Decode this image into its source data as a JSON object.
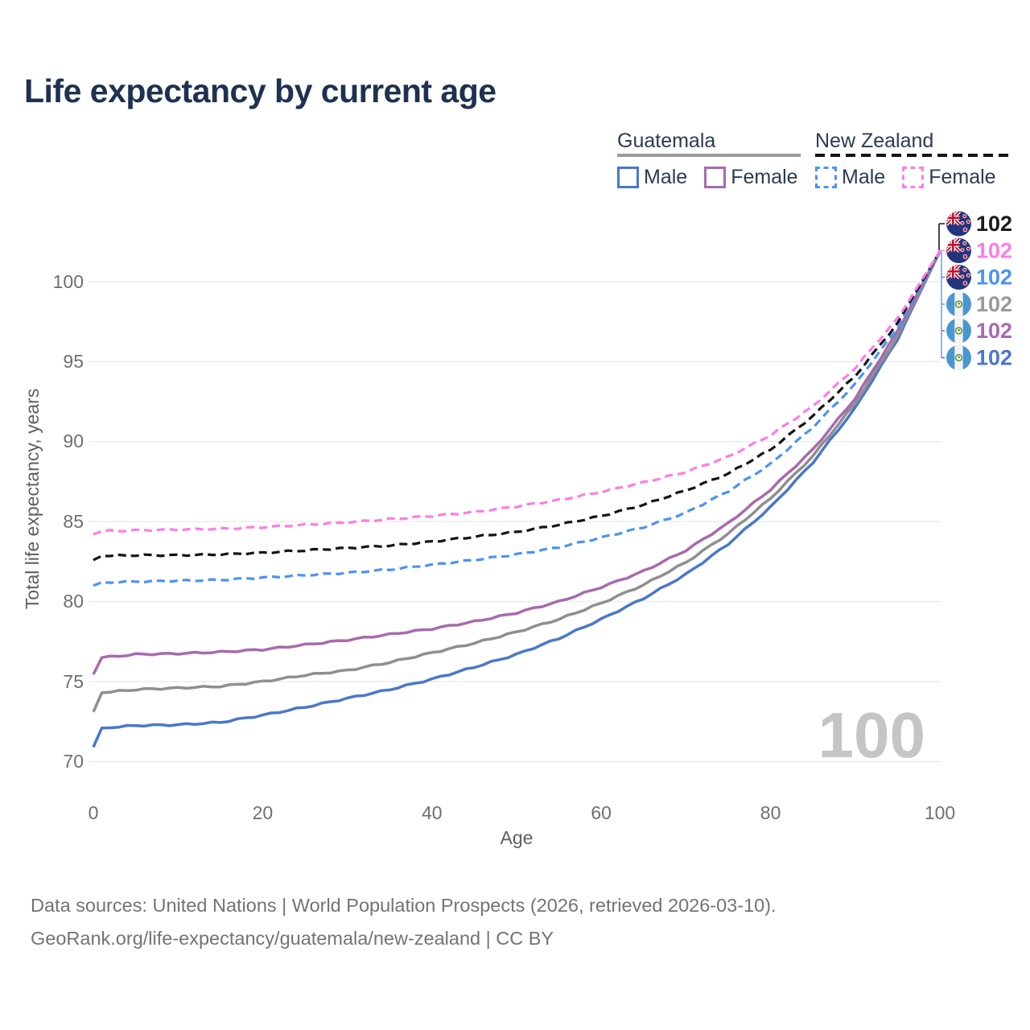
{
  "title": "Life expectancy by current age",
  "legend": {
    "groups": [
      {
        "label": "Guatemala",
        "line_style": "solid",
        "rule_color": "#9a9a9a",
        "items": [
          {
            "label": "Male",
            "color": "#4a77c9"
          },
          {
            "label": "Female",
            "color": "#a86aae"
          }
        ]
      },
      {
        "label": "New Zealand",
        "line_style": "dashed",
        "rule_color": "#141414",
        "items": [
          {
            "label": "Male",
            "color": "#4b93f2"
          },
          {
            "label": "Female",
            "color": "#ff7ce4"
          }
        ]
      }
    ]
  },
  "chart_data": {
    "type": "line",
    "title": "Life expectancy by current age",
    "xlabel": "Age",
    "ylabel": "Total life expectancy, years",
    "xlim": [
      0,
      100
    ],
    "ylim": [
      70,
      102.5
    ],
    "xticks": [
      0,
      20,
      40,
      60,
      80,
      100
    ],
    "yticks": [
      70,
      75,
      80,
      85,
      90,
      95,
      100
    ],
    "grid": "horizontal",
    "legend_position": "top-right",
    "age_indicator": "100",
    "x": [
      0,
      1,
      5,
      10,
      15,
      20,
      25,
      30,
      35,
      40,
      45,
      50,
      55,
      60,
      65,
      70,
      75,
      80,
      85,
      90,
      95,
      100
    ],
    "series": [
      {
        "name": "Guatemala Male",
        "country": "Guatemala",
        "sex": "male",
        "color": "#4a77c9",
        "dash": false,
        "values": [
          70.9,
          72.1,
          72.25,
          72.3,
          72.45,
          72.9,
          73.4,
          73.95,
          74.5,
          75.15,
          75.9,
          76.7,
          77.7,
          78.9,
          80.2,
          81.7,
          83.6,
          85.9,
          88.7,
          92.1,
          96.4,
          101.9
        ]
      },
      {
        "name": "Guatemala All",
        "country": "Guatemala",
        "sex": "all",
        "color": "#8f8f8f",
        "dash": false,
        "values": [
          73.1,
          74.3,
          74.5,
          74.6,
          74.7,
          75.0,
          75.4,
          75.7,
          76.2,
          76.8,
          77.4,
          78.1,
          78.9,
          79.9,
          81.05,
          82.45,
          84.25,
          86.45,
          89.1,
          92.4,
          96.6,
          101.9
        ]
      },
      {
        "name": "Guatemala Female",
        "country": "Guatemala",
        "sex": "female",
        "color": "#a86aae",
        "dash": false,
        "values": [
          75.45,
          76.5,
          76.7,
          76.75,
          76.85,
          77.0,
          77.3,
          77.6,
          77.95,
          78.3,
          78.75,
          79.3,
          80.0,
          80.9,
          81.9,
          83.2,
          84.9,
          87.0,
          89.5,
          92.7,
          96.9,
          101.9
        ]
      },
      {
        "name": "New Zealand Male",
        "country": "New Zealand",
        "sex": "male",
        "color": "#4b93f2",
        "dash": true,
        "values": [
          81.0,
          81.2,
          81.25,
          81.3,
          81.35,
          81.5,
          81.65,
          81.8,
          82.0,
          82.3,
          82.6,
          82.95,
          83.4,
          84.0,
          84.65,
          85.55,
          86.9,
          88.6,
          90.9,
          93.6,
          97.1,
          101.9
        ]
      },
      {
        "name": "New Zealand All",
        "country": "New Zealand",
        "sex": "all",
        "color": "#141414",
        "dash": true,
        "values": [
          82.6,
          82.85,
          82.9,
          82.9,
          82.95,
          83.05,
          83.2,
          83.35,
          83.5,
          83.75,
          84.05,
          84.35,
          84.8,
          85.35,
          86.05,
          86.95,
          88.0,
          89.5,
          91.6,
          94.1,
          97.4,
          101.9
        ]
      },
      {
        "name": "New Zealand Female",
        "country": "New Zealand",
        "sex": "female",
        "color": "#ff7ce4",
        "dash": true,
        "values": [
          84.2,
          84.4,
          84.45,
          84.5,
          84.55,
          84.65,
          84.8,
          84.95,
          85.15,
          85.35,
          85.6,
          85.95,
          86.35,
          86.85,
          87.45,
          88.1,
          89.05,
          90.4,
          92.2,
          94.6,
          97.7,
          101.9
        ]
      }
    ]
  },
  "right_labels": [
    {
      "flag": "nz",
      "country": "New Zealand",
      "series": "All",
      "value": "102",
      "color": "#1a1a1a"
    },
    {
      "flag": "nz",
      "country": "New Zealand",
      "series": "Female",
      "value": "102",
      "color": "#ff7ce4"
    },
    {
      "flag": "nz",
      "country": "New Zealand",
      "series": "Male",
      "value": "102",
      "color": "#4b93f2"
    },
    {
      "flag": "gt",
      "country": "Guatemala",
      "series": "All",
      "value": "102",
      "color": "#999999"
    },
    {
      "flag": "gt",
      "country": "Guatemala",
      "series": "Female",
      "value": "102",
      "color": "#a86aae"
    },
    {
      "flag": "gt",
      "country": "Guatemala",
      "series": "Male",
      "value": "102",
      "color": "#4a77c9"
    }
  ],
  "footer": {
    "line1": "Data sources: United Nations | World Population Prospects (2026, retrieved 2026-03-10).",
    "line2": "GeoRank.org/life-expectancy/guatemala/new-zealand | CC BY"
  }
}
